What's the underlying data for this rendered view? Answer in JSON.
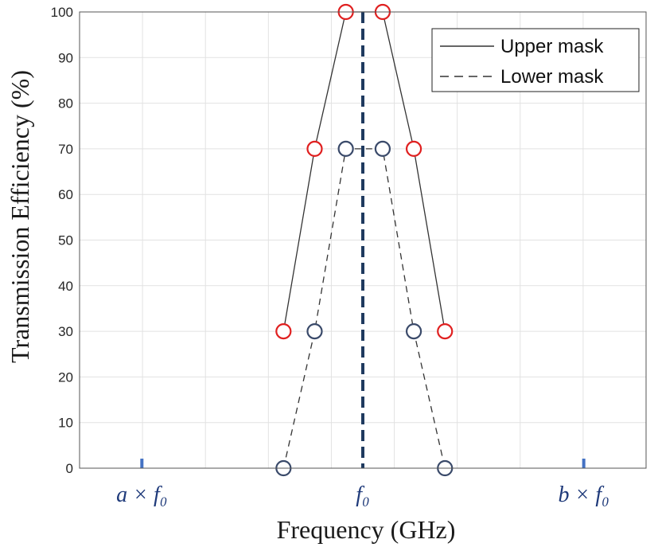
{
  "chart_data": {
    "type": "line",
    "xlabel": "Frequency (GHz)",
    "ylabel": "Transmission Efficiency (%)",
    "ylim": [
      0,
      100
    ],
    "yticks": [
      0,
      10,
      20,
      30,
      40,
      50,
      60,
      70,
      80,
      90,
      100
    ],
    "xlim": [
      -1,
      1
    ],
    "grid": true,
    "legend_position": "top-right",
    "x_markers": [
      {
        "x": -0.78,
        "label": "a × f₀",
        "color": "#4472c4"
      },
      {
        "x": 0,
        "label": "f₀",
        "color": "#1f3a5f"
      },
      {
        "x": 0.78,
        "label": "b × f₀",
        "color": "#4472c4"
      }
    ],
    "series": [
      {
        "name": "Upper mask",
        "line_style": "solid",
        "line_color": "#333333",
        "marker_color": "#e02020",
        "x": [
          -0.28,
          -0.17,
          -0.06,
          0.07,
          0.18,
          0.29
        ],
        "values": [
          30,
          70,
          100,
          100,
          70,
          30
        ]
      },
      {
        "name": "Lower mask",
        "line_style": "dashed",
        "line_color": "#333333",
        "marker_color": "#3a4a6a",
        "x": [
          -0.28,
          -0.17,
          -0.06,
          0.07,
          0.18,
          0.29
        ],
        "values": [
          0,
          30,
          70,
          70,
          30,
          0
        ]
      }
    ]
  }
}
